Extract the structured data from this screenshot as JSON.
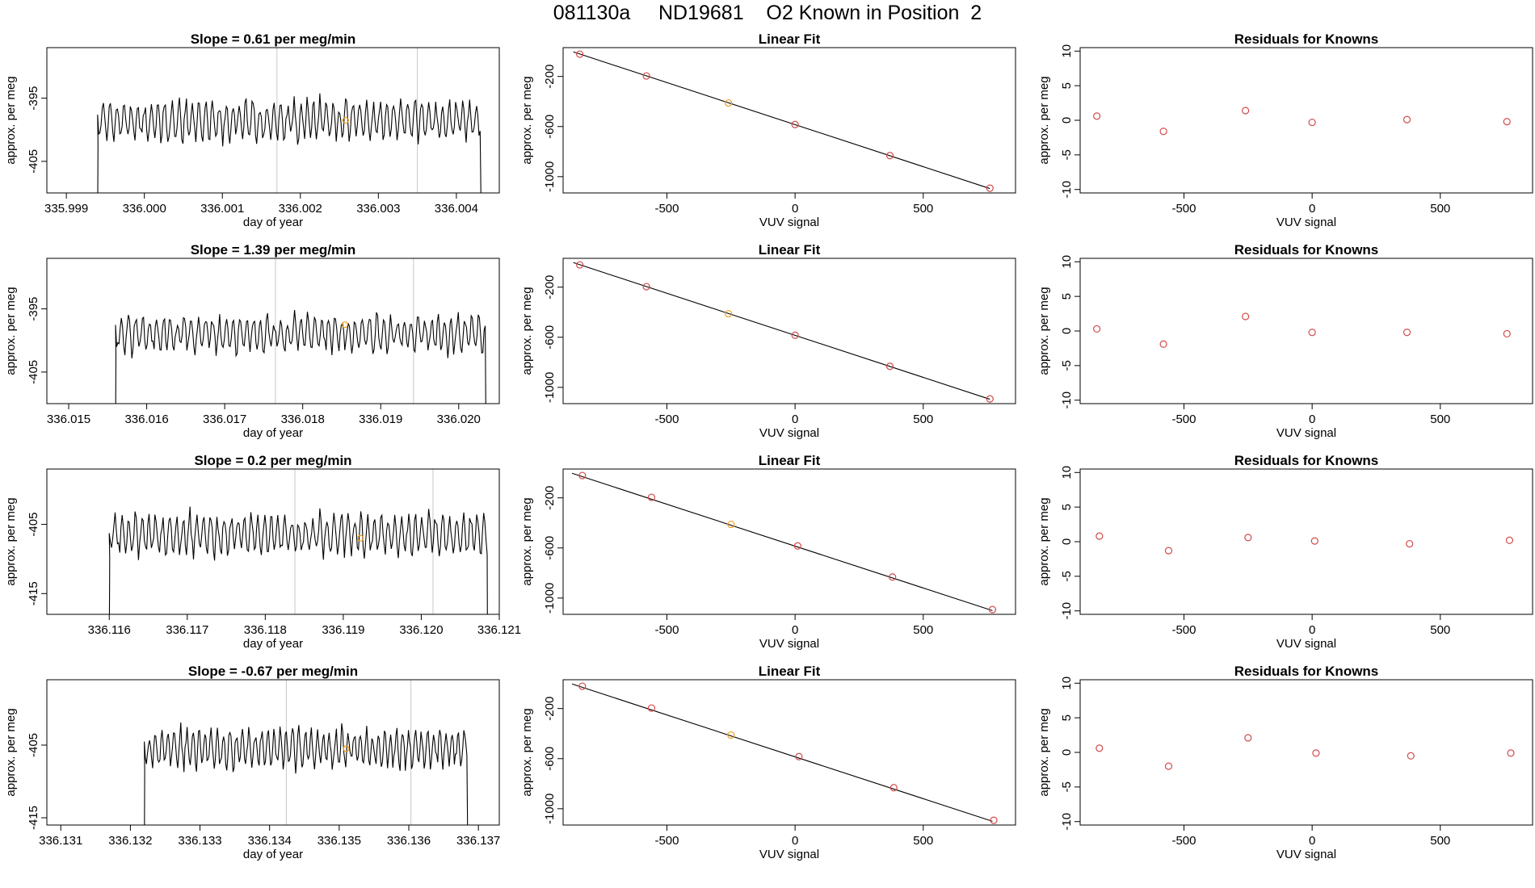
{
  "page_title": "081130a     ND19681    O2 Known in Position  2",
  "colors": {
    "line": "#000000",
    "frame": "#000000",
    "marker_red": "#d24a4a",
    "marker_orange": "#f0a020",
    "vline": "#c8c8c8"
  },
  "chart_data": [
    {
      "type": "line",
      "title": "Slope =  0.61  per meg/min",
      "xlabel": "day of year",
      "ylabel": "approx. per meg",
      "xlim": [
        335.99875,
        336.00455
      ],
      "ylim": [
        -410,
        -387
      ],
      "xticks": [
        335.999,
        336.0,
        336.001,
        336.002,
        336.003,
        336.004
      ],
      "xtick_labels": [
        "335.999",
        "336.000",
        "336.001",
        "336.002",
        "336.003",
        "336.004"
      ],
      "yticks": [
        -395,
        -405
      ],
      "ytick_labels": [
        "-395",
        "-405"
      ],
      "vlines": [
        336.0017,
        336.0035
      ],
      "x_start": 335.9994,
      "x_end": 336.00432,
      "baseline": -398.5,
      "amplitude": 3.2,
      "period": 9e-05,
      "seed": 11,
      "highlight_point": {
        "x": 336.00258,
        "y": -398.5
      }
    },
    {
      "type": "scatter",
      "title": "Linear Fit",
      "xlabel": "VUV signal",
      "ylabel": "approx. per meg",
      "xlim": [
        -905,
        860
      ],
      "ylim": [
        -1130,
        30
      ],
      "xticks": [
        -500,
        0,
        500
      ],
      "xtick_labels": [
        "-500",
        "0",
        "500"
      ],
      "yticks": [
        -200,
        -600,
        -1000
      ],
      "ytick_labels": [
        "-200",
        "-600",
        "-1000"
      ],
      "fit_line": {
        "x": [
          -865,
          760
        ],
        "y": [
          -4,
          -1095
        ]
      },
      "points": [
        {
          "x": -840,
          "y": -22
        },
        {
          "x": -580,
          "y": -196
        },
        {
          "x": -260,
          "y": -412,
          "highlight": true
        },
        {
          "x": 0,
          "y": -584
        },
        {
          "x": 370,
          "y": -832
        },
        {
          "x": 760,
          "y": -1092
        }
      ]
    },
    {
      "type": "scatter",
      "title": "Residuals for Knowns",
      "xlabel": "VUV signal",
      "ylabel": "approx. per meg",
      "xlim": [
        -905,
        860
      ],
      "ylim": [
        -10.5,
        10.5
      ],
      "xticks": [
        -500,
        0,
        500
      ],
      "xtick_labels": [
        "-500",
        "0",
        "500"
      ],
      "yticks": [
        10,
        5,
        0,
        -5,
        -10
      ],
      "ytick_labels": [
        "10",
        "5",
        "0",
        "-5",
        "-10"
      ],
      "points": [
        {
          "x": -840,
          "y": 0.6
        },
        {
          "x": -580,
          "y": -1.6
        },
        {
          "x": -260,
          "y": 1.4
        },
        {
          "x": 0,
          "y": -0.3
        },
        {
          "x": 370,
          "y": 0.1
        },
        {
          "x": 760,
          "y": -0.2
        }
      ]
    },
    {
      "type": "line",
      "title": "Slope =  1.39  per meg/min",
      "xlabel": "day of year",
      "ylabel": "approx. per meg",
      "xlim": [
        336.01472,
        336.02052
      ],
      "ylim": [
        -410,
        -387
      ],
      "xticks": [
        336.015,
        336.016,
        336.017,
        336.018,
        336.019,
        336.02
      ],
      "xtick_labels": [
        "336.015",
        "336.016",
        "336.017",
        "336.018",
        "336.019",
        "336.020"
      ],
      "yticks": [
        -395,
        -405
      ],
      "ytick_labels": [
        "-395",
        "-405"
      ],
      "vlines": [
        336.01765,
        336.01942
      ],
      "x_start": 336.0156,
      "x_end": 336.02035,
      "baseline": -399,
      "amplitude": 3.0,
      "period": 9e-05,
      "seed": 23,
      "highlight_point": {
        "x": 336.01854,
        "y": -397.5
      }
    },
    {
      "type": "scatter",
      "title": "Linear Fit",
      "xlabel": "VUV signal",
      "ylabel": "approx. per meg",
      "xlim": [
        -905,
        860
      ],
      "ylim": [
        -1130,
        30
      ],
      "xticks": [
        -500,
        0,
        500
      ],
      "xtick_labels": [
        "-500",
        "0",
        "500"
      ],
      "yticks": [
        -200,
        -600,
        -1000
      ],
      "ytick_labels": [
        "-200",
        "-600",
        "-1000"
      ],
      "fit_line": {
        "x": [
          -865,
          760
        ],
        "y": [
          -4,
          -1095
        ]
      },
      "points": [
        {
          "x": -840,
          "y": -22
        },
        {
          "x": -580,
          "y": -196
        },
        {
          "x": -260,
          "y": -412,
          "highlight": true
        },
        {
          "x": 0,
          "y": -584
        },
        {
          "x": 370,
          "y": -832
        },
        {
          "x": 760,
          "y": -1092
        }
      ]
    },
    {
      "type": "scatter",
      "title": "Residuals for Knowns",
      "xlabel": "VUV signal",
      "ylabel": "approx. per meg",
      "xlim": [
        -905,
        860
      ],
      "ylim": [
        -10.5,
        10.5
      ],
      "xticks": [
        -500,
        0,
        500
      ],
      "xtick_labels": [
        "-500",
        "0",
        "500"
      ],
      "yticks": [
        10,
        5,
        0,
        -5,
        -10
      ],
      "ytick_labels": [
        "10",
        "5",
        "0",
        "-5",
        "-10"
      ],
      "points": [
        {
          "x": -840,
          "y": 0.3
        },
        {
          "x": -580,
          "y": -1.9
        },
        {
          "x": -260,
          "y": 2.1
        },
        {
          "x": 0,
          "y": -0.2
        },
        {
          "x": 370,
          "y": -0.2
        },
        {
          "x": 760,
          "y": -0.4
        }
      ]
    },
    {
      "type": "line",
      "title": "Slope =  0.2  per meg/min",
      "xlabel": "day of year",
      "ylabel": "approx. per meg",
      "xlim": [
        336.1152,
        336.121
      ],
      "ylim": [
        -418,
        -397
      ],
      "xticks": [
        336.116,
        336.117,
        336.118,
        336.119,
        336.12,
        336.121
      ],
      "xtick_labels": [
        "336.116",
        "336.117",
        "336.118",
        "336.119",
        "336.120",
        "336.121"
      ],
      "yticks": [
        -405,
        -415
      ],
      "ytick_labels": [
        "-405",
        "-415"
      ],
      "vlines": [
        336.11838,
        336.12015
      ],
      "x_start": 336.116,
      "x_end": 336.12085,
      "baseline": -406.5,
      "amplitude": 3.0,
      "period": 9e-05,
      "seed": 37,
      "highlight_point": {
        "x": 336.11922,
        "y": -407
      }
    },
    {
      "type": "scatter",
      "title": "Linear Fit",
      "xlabel": "VUV signal",
      "ylabel": "approx. per meg",
      "xlim": [
        -905,
        860
      ],
      "ylim": [
        -1130,
        30
      ],
      "xticks": [
        -500,
        0,
        500
      ],
      "xtick_labels": [
        "-500",
        "0",
        "500"
      ],
      "yticks": [
        -200,
        -600,
        -1000
      ],
      "ytick_labels": [
        "-200",
        "-600",
        "-1000"
      ],
      "fit_line": {
        "x": [
          -870,
          770
        ],
        "y": [
          -4,
          -1100
        ]
      },
      "points": [
        {
          "x": -830,
          "y": -22
        },
        {
          "x": -560,
          "y": -196
        },
        {
          "x": -250,
          "y": -412,
          "highlight": true
        },
        {
          "x": 10,
          "y": -584
        },
        {
          "x": 380,
          "y": -832
        },
        {
          "x": 770,
          "y": -1092
        }
      ]
    },
    {
      "type": "scatter",
      "title": "Residuals for Knowns",
      "xlabel": "VUV signal",
      "ylabel": "approx. per meg",
      "xlim": [
        -905,
        860
      ],
      "ylim": [
        -10.5,
        10.5
      ],
      "xticks": [
        -500,
        0,
        500
      ],
      "xtick_labels": [
        "-500",
        "0",
        "500"
      ],
      "yticks": [
        10,
        5,
        0,
        -5,
        -10
      ],
      "ytick_labels": [
        "10",
        "5",
        "0",
        "-5",
        "-10"
      ],
      "points": [
        {
          "x": -830,
          "y": 0.8
        },
        {
          "x": -560,
          "y": -1.3
        },
        {
          "x": -250,
          "y": 0.6
        },
        {
          "x": 10,
          "y": 0.1
        },
        {
          "x": 380,
          "y": -0.3
        },
        {
          "x": 770,
          "y": 0.2
        }
      ]
    },
    {
      "type": "line",
      "title": "Slope =  -0.67  per meg/min",
      "xlabel": "day of year",
      "ylabel": "approx. per meg",
      "xlim": [
        336.1308,
        336.1373
      ],
      "ylim": [
        -416,
        -396
      ],
      "xticks": [
        336.131,
        336.132,
        336.133,
        336.134,
        336.135,
        336.136,
        336.137
      ],
      "xtick_labels": [
        "336.131",
        "336.132",
        "336.133",
        "336.134",
        "336.135",
        "336.136",
        "336.137"
      ],
      "yticks": [
        -405,
        -415
      ],
      "ytick_labels": [
        "-405",
        "-415"
      ],
      "vlines": [
        336.13424,
        336.13603
      ],
      "x_start": 336.1322,
      "x_end": 336.13685,
      "baseline": -405.5,
      "amplitude": 2.8,
      "period": 9e-05,
      "seed": 53,
      "highlight_point": {
        "x": 336.1351,
        "y": -405.5
      }
    },
    {
      "type": "scatter",
      "title": "Linear Fit",
      "xlabel": "VUV signal",
      "ylabel": "approx. per meg",
      "xlim": [
        -905,
        860
      ],
      "ylim": [
        -1130,
        30
      ],
      "xticks": [
        -500,
        0,
        500
      ],
      "xtick_labels": [
        "-500",
        "0",
        "500"
      ],
      "yticks": [
        -200,
        -600,
        -1000
      ],
      "ytick_labels": [
        "-200",
        "-600",
        "-1000"
      ],
      "fit_line": {
        "x": [
          -870,
          770
        ],
        "y": [
          -4,
          -1100
        ]
      },
      "points": [
        {
          "x": -830,
          "y": -22
        },
        {
          "x": -560,
          "y": -196
        },
        {
          "x": -250,
          "y": -412,
          "highlight": true
        },
        {
          "x": 15,
          "y": -584
        },
        {
          "x": 385,
          "y": -832
        },
        {
          "x": 775,
          "y": -1092
        }
      ]
    },
    {
      "type": "scatter",
      "title": "Residuals for Knowns",
      "xlabel": "VUV signal",
      "ylabel": "approx. per meg",
      "xlim": [
        -905,
        860
      ],
      "ylim": [
        -10.5,
        10.5
      ],
      "xticks": [
        -500,
        0,
        500
      ],
      "xtick_labels": [
        "-500",
        "0",
        "500"
      ],
      "yticks": [
        10,
        5,
        0,
        -5,
        -10
      ],
      "ytick_labels": [
        "10",
        "5",
        "0",
        "-5",
        "-10"
      ],
      "points": [
        {
          "x": -830,
          "y": 0.6
        },
        {
          "x": -560,
          "y": -2.0
        },
        {
          "x": -250,
          "y": 2.1
        },
        {
          "x": 15,
          "y": -0.1
        },
        {
          "x": 385,
          "y": -0.5
        },
        {
          "x": 775,
          "y": -0.1
        }
      ]
    }
  ]
}
